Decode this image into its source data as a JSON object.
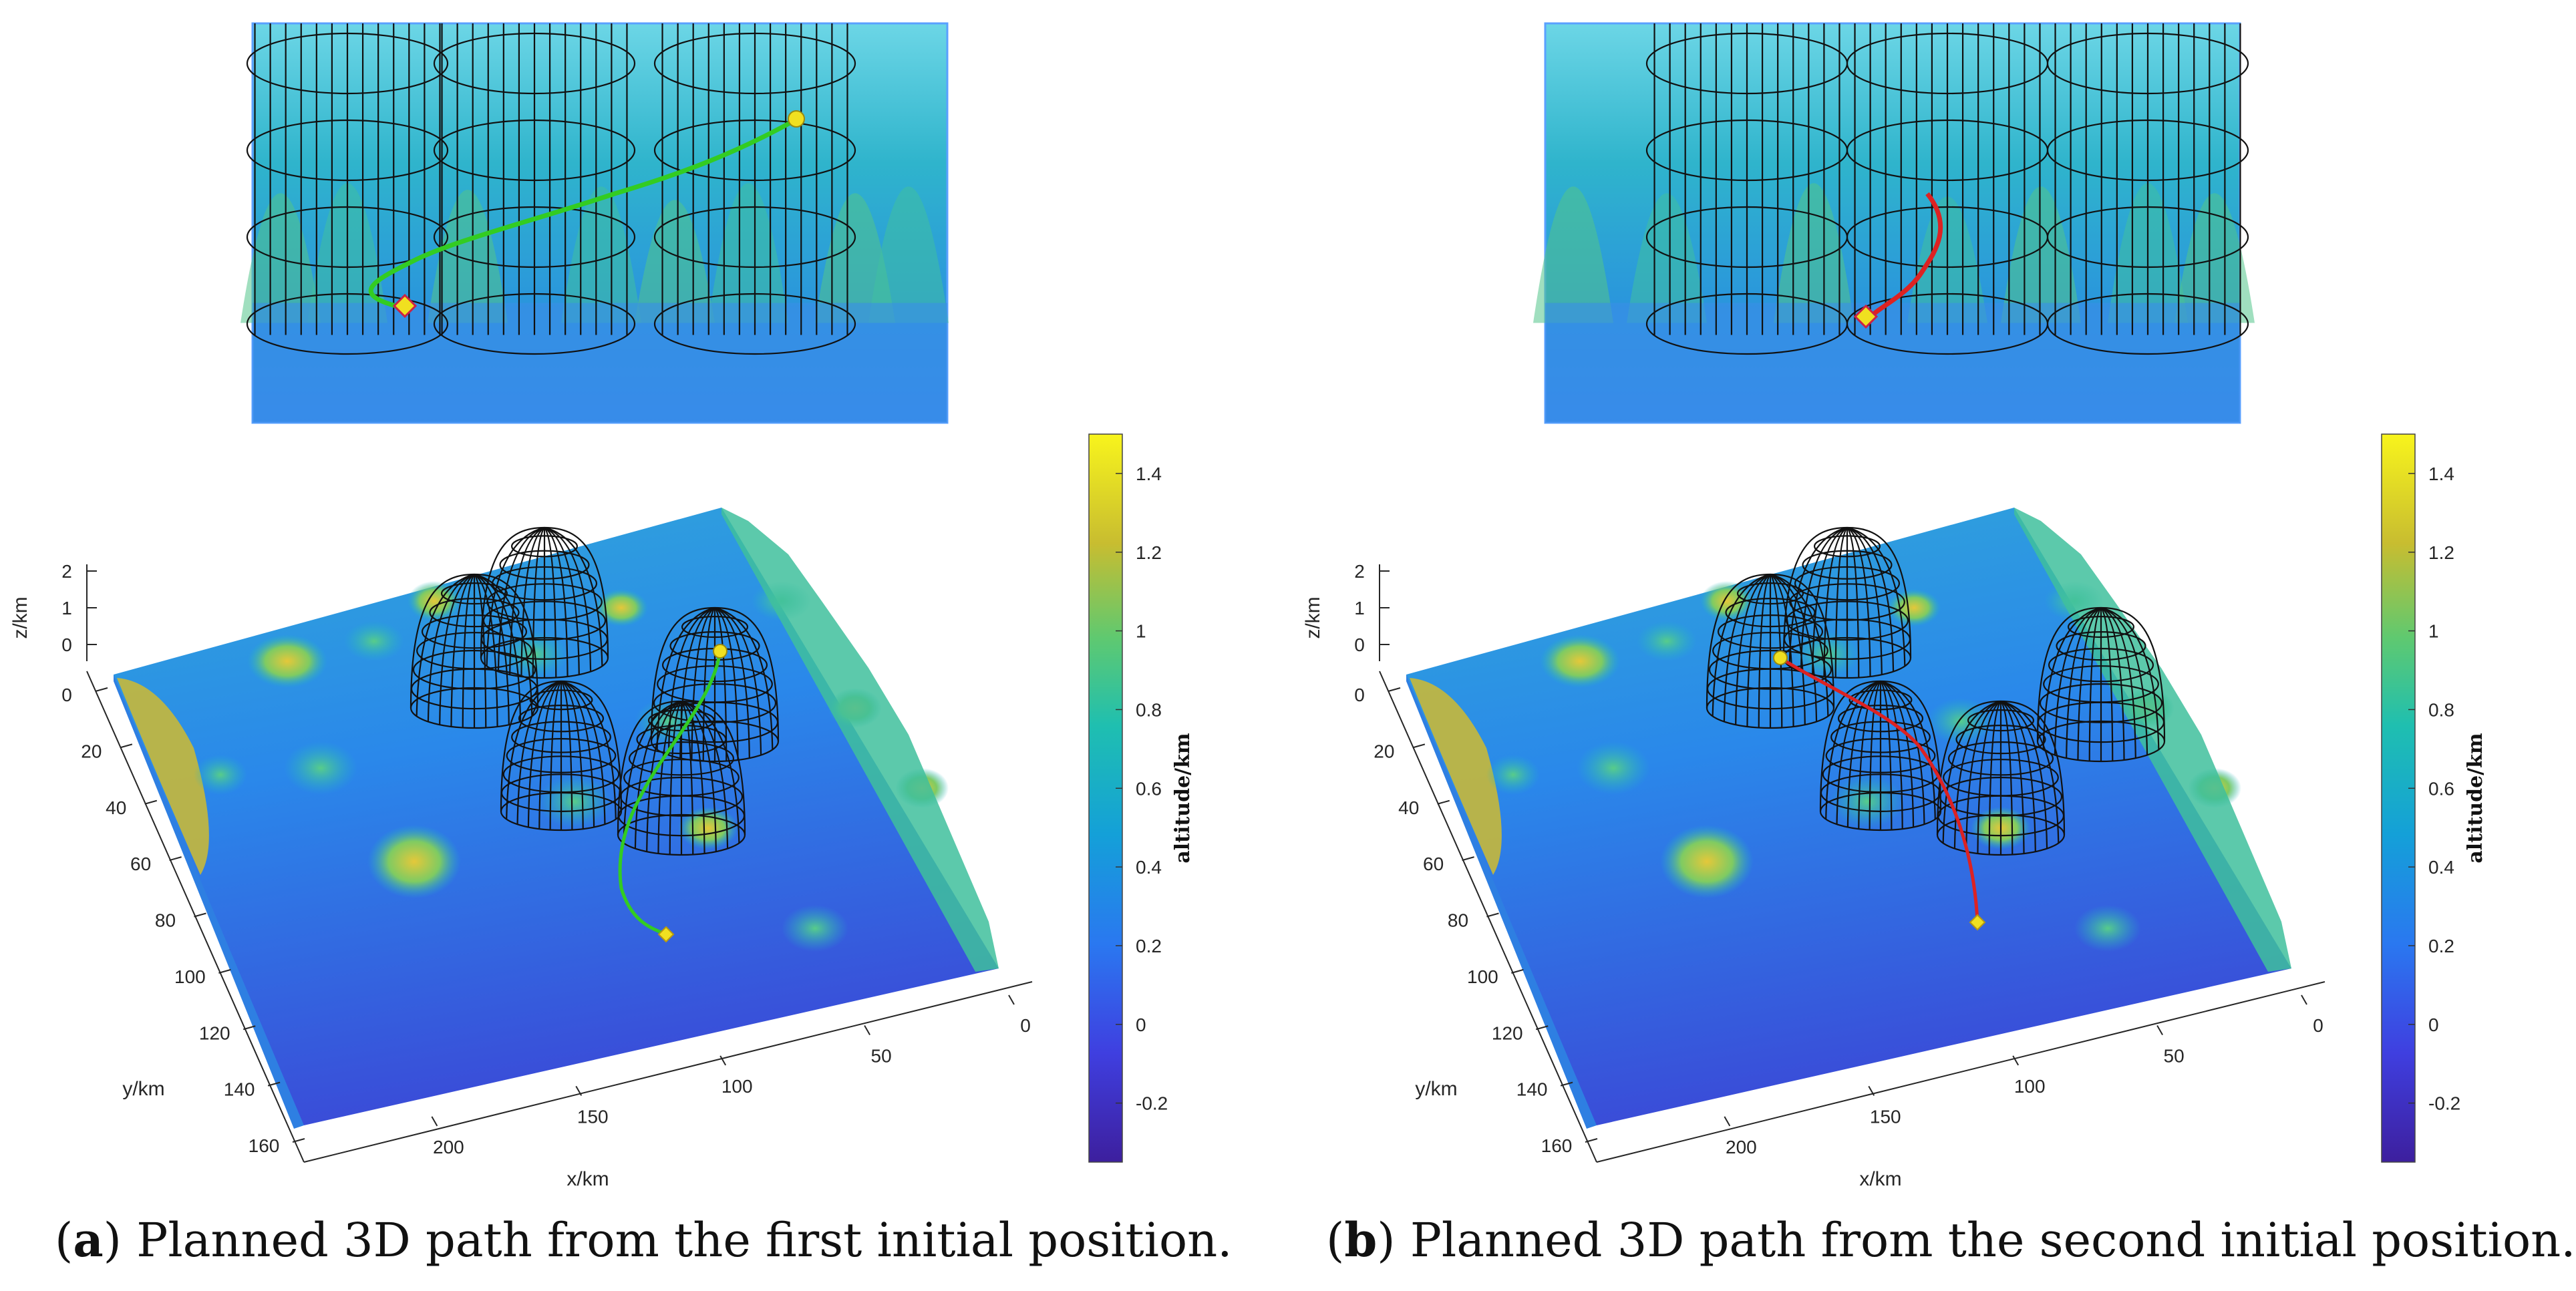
{
  "chart_data": [
    {
      "type": "surface3d",
      "panel": "a",
      "caption_letter": "a",
      "caption_text": "Planned 3D path from the first initial position.",
      "xlabel": "x/km",
      "ylabel": "y/km",
      "zlabel": "z/km",
      "x_ticks": [
        "0",
        "50",
        "100",
        "150",
        "200"
      ],
      "y_ticks": [
        "0",
        "20",
        "40",
        "60",
        "80",
        "100",
        "120",
        "140",
        "160"
      ],
      "z_ticks": [
        "0",
        "1",
        "2"
      ],
      "colorbar": {
        "label": "altitude/km",
        "min": -0.35,
        "max": 1.5,
        "ticks": [
          "1.4",
          "1.2",
          "1",
          "0.8",
          "0.6",
          "0.4",
          "0.2",
          "0",
          "-0.2"
        ]
      },
      "obstacles": 5,
      "path_color": "#33cc22",
      "marker_color": "#f0e020"
    },
    {
      "type": "surface3d",
      "panel": "b",
      "caption_letter": "b",
      "caption_text": "Planned 3D path from the second initial position.",
      "xlabel": "x/km",
      "ylabel": "y/km",
      "zlabel": "z/km",
      "x_ticks": [
        "0",
        "50",
        "100",
        "150",
        "200"
      ],
      "y_ticks": [
        "0",
        "20",
        "40",
        "60",
        "80",
        "100",
        "120",
        "140",
        "160"
      ],
      "z_ticks": [
        "0",
        "1",
        "2"
      ],
      "colorbar": {
        "label": "altitude/km",
        "min": -0.35,
        "max": 1.5,
        "ticks": [
          "1.4",
          "1.2",
          "1",
          "0.8",
          "0.6",
          "0.4",
          "0.2",
          "0",
          "-0.2"
        ]
      },
      "obstacles": 5,
      "path_color": "#dd2222",
      "marker_color": "#f0e020"
    }
  ]
}
